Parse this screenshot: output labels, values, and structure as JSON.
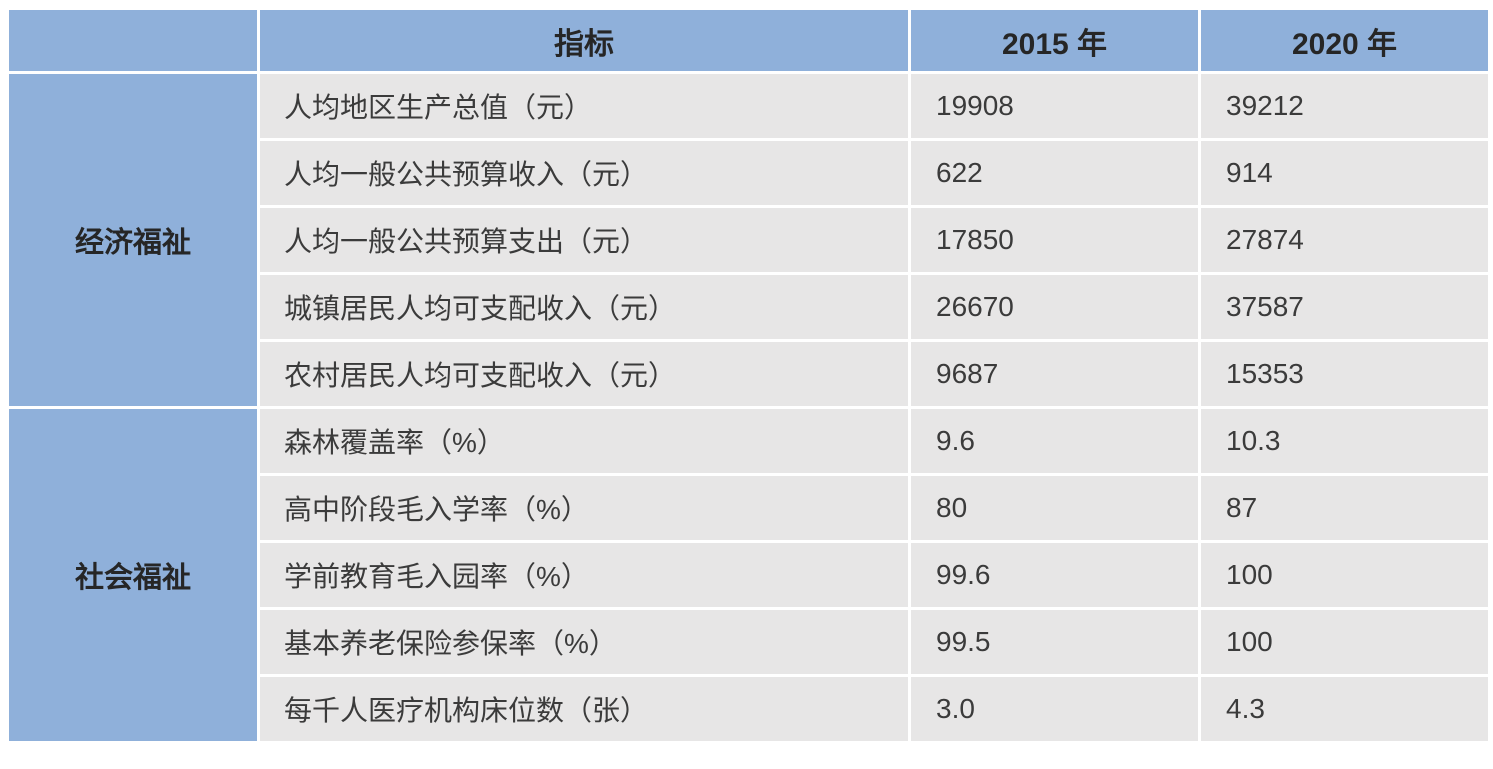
{
  "table": {
    "header": {
      "indicator": "指标",
      "year2015": "2015 年",
      "year2020": "2020 年"
    },
    "groups": [
      {
        "category": "经济福祉",
        "rows": [
          {
            "indicator": "人均地区生产总值（元）",
            "v2015": "19908",
            "v2020": "39212"
          },
          {
            "indicator": "人均一般公共预算收入（元）",
            "v2015": "622",
            "v2020": "914"
          },
          {
            "indicator": "人均一般公共预算支出（元）",
            "v2015": "17850",
            "v2020": "27874"
          },
          {
            "indicator": "城镇居民人均可支配收入（元）",
            "v2015": "26670",
            "v2020": "37587"
          },
          {
            "indicator": "农村居民人均可支配收入（元）",
            "v2015": "9687",
            "v2020": "15353"
          }
        ]
      },
      {
        "category": "社会福祉",
        "rows": [
          {
            "indicator": "森林覆盖率（%）",
            "v2015": "9.6",
            "v2020": "10.3"
          },
          {
            "indicator": "高中阶段毛入学率（%）",
            "v2015": "80",
            "v2020": "87"
          },
          {
            "indicator": "学前教育毛入园率（%）",
            "v2015": "99.6",
            "v2020": "100"
          },
          {
            "indicator": "基本养老保险参保率（%）",
            "v2015": "99.5",
            "v2020": "100"
          },
          {
            "indicator": "每千人医疗机构床位数（张）",
            "v2015": "3.0",
            "v2020": "4.3"
          }
        ]
      }
    ],
    "colors": {
      "header_bg": "#8FB0DA",
      "row_bg": "#E7E6E6",
      "header_text": "#262626",
      "body_text": "#3B3B3B"
    }
  },
  "chart_data": {
    "type": "table",
    "columns": [
      "",
      "指标",
      "2015 年",
      "2020 年"
    ],
    "rows": [
      [
        "经济福祉",
        "人均地区生产总值（元）",
        19908,
        39212
      ],
      [
        "经济福祉",
        "人均一般公共预算收入（元）",
        622,
        914
      ],
      [
        "经济福祉",
        "人均一般公共预算支出（元）",
        17850,
        27874
      ],
      [
        "经济福祉",
        "城镇居民人均可支配收入（元）",
        26670,
        37587
      ],
      [
        "经济福祉",
        "农村居民人均可支配收入（元）",
        9687,
        15353
      ],
      [
        "社会福祉",
        "森林覆盖率（%）",
        9.6,
        10.3
      ],
      [
        "社会福祉",
        "高中阶段毛入学率（%）",
        80,
        87
      ],
      [
        "社会福祉",
        "学前教育毛入园率（%）",
        99.6,
        100
      ],
      [
        "社会福祉",
        "基本养老保险参保率（%）",
        99.5,
        100
      ],
      [
        "社会福祉",
        "每千人医疗机构床位数（张）",
        3.0,
        4.3
      ]
    ]
  }
}
